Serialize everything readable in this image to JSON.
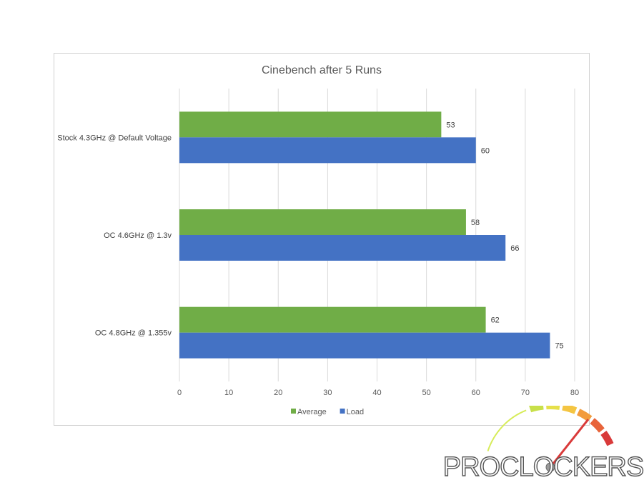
{
  "chart_data": {
    "type": "bar",
    "orientation": "horizontal",
    "title": "Cinebench after 5 Runs",
    "categories": [
      "Stock 4.3GHz @ Default Voltage",
      "OC 4.6GHz @ 1.3v",
      "OC 4.8GHz @ 1.355v"
    ],
    "series": [
      {
        "name": "Average",
        "values": [
          53,
          58,
          62
        ],
        "color": "#70ad47"
      },
      {
        "name": "Load",
        "values": [
          60,
          66,
          75
        ],
        "color": "#4472c4"
      }
    ],
    "xlim": [
      0,
      80
    ],
    "xticks": [
      0,
      10,
      20,
      30,
      40,
      50,
      60,
      70,
      80
    ],
    "grid": "vertical",
    "legend": "bottom",
    "data_labels": true
  },
  "watermark": {
    "text": "PROCLOCKERS",
    "gauge_colors": [
      "#c8e04a",
      "#e6e04a",
      "#f4c542",
      "#f29b3c",
      "#e8643a",
      "#d93a3a"
    ]
  }
}
